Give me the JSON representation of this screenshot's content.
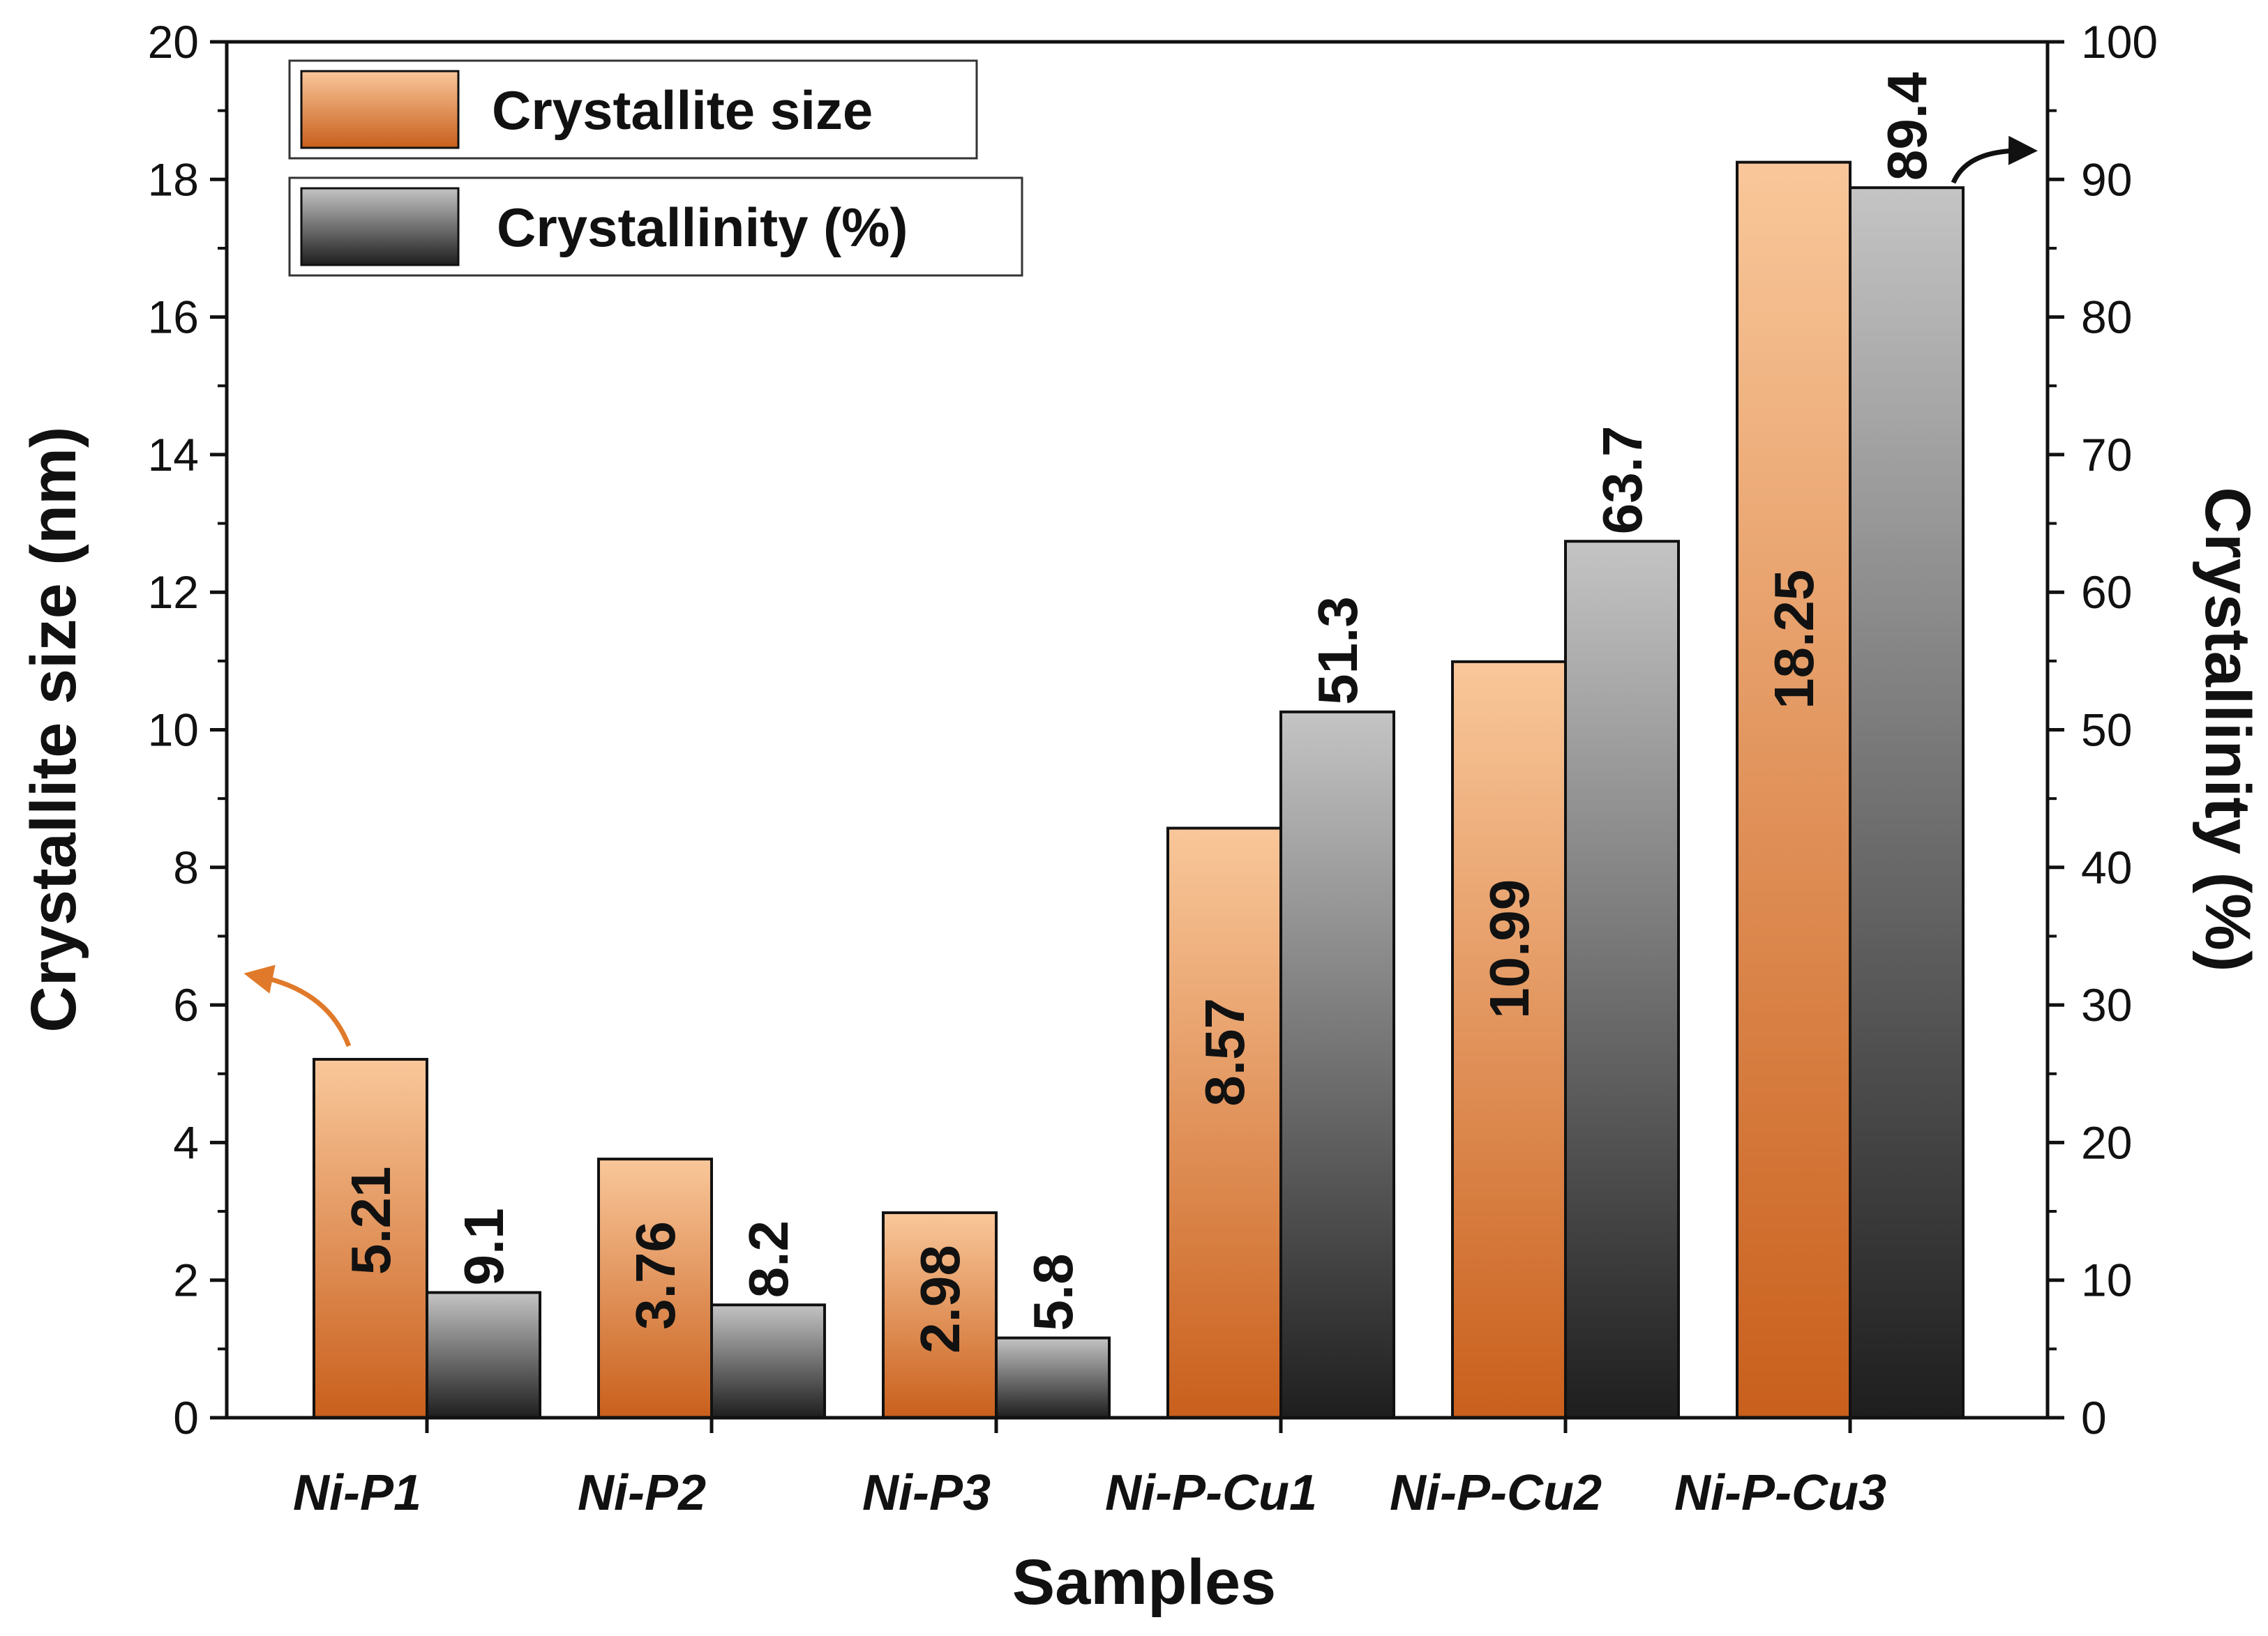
{
  "chart_data": {
    "type": "bar",
    "categories": [
      "Ni-P1",
      "Ni-P2",
      "Ni-P3",
      "Ni-P-Cu1",
      "Ni-P-Cu2",
      "Ni-P-Cu3"
    ],
    "series": [
      {
        "name": "Crystallite size",
        "axis": "left",
        "values": [
          5.21,
          3.76,
          2.98,
          8.57,
          10.99,
          18.25
        ],
        "labels": [
          "5.21",
          "3.76",
          "2.98",
          "8.57",
          "10.99",
          "18.25"
        ],
        "color_top": "#f9c79a",
        "color_bottom": "#c95f1c"
      },
      {
        "name": "Crystallinity (%)",
        "axis": "right",
        "values": [
          9.1,
          8.2,
          5.8,
          51.3,
          63.7,
          89.4
        ],
        "labels": [
          "9.1",
          "8.2",
          "5.8",
          "51.3",
          "63.7",
          "89.4"
        ],
        "color_top": "#c4c4c4",
        "color_bottom": "#1e1e1e"
      }
    ],
    "xlabel": "Samples",
    "ylabel": "Crystallite size (nm)",
    "y2label": "Crystallinity (%)",
    "ylim": [
      0,
      20
    ],
    "y2lim": [
      0,
      100
    ],
    "yticks": [
      0,
      2,
      4,
      6,
      8,
      10,
      12,
      14,
      16,
      18,
      20
    ],
    "y2ticks": [
      0,
      10,
      20,
      30,
      40,
      50,
      60,
      70,
      80,
      90,
      100
    ],
    "legend_position": "top-left",
    "grid": false,
    "arrow_color_left": "#e07a2a",
    "arrow_color_right": "#111111"
  }
}
